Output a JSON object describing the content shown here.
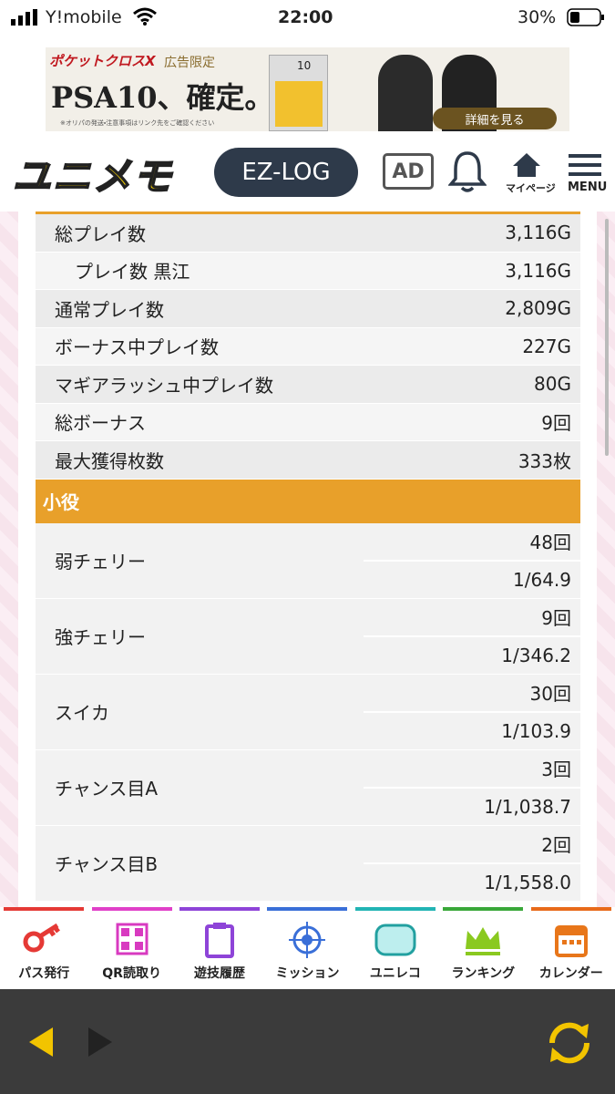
{
  "status": {
    "carrier": "Y!mobile",
    "time": "22:00",
    "battery": "30%"
  },
  "ad": {
    "brand": "ポケットクロスX",
    "tag": "広告限定",
    "headline": "PSA10、確定。",
    "grade": "10",
    "note": "※オリパの発送・注意事項はリンク先をご確認ください",
    "button": "詳細を見る"
  },
  "header": {
    "logo": "ユニメモ",
    "ezlog": "EZ-LOG",
    "ad": "AD",
    "mypage": "マイページ",
    "menu": "MENU"
  },
  "stats": [
    {
      "label": "総プレイ数",
      "value": "3,116G"
    },
    {
      "label": "プレイ数 黒江",
      "value": "3,116G"
    },
    {
      "label": "通常プレイ数",
      "value": "2,809G"
    },
    {
      "label": "ボーナス中プレイ数",
      "value": "227G"
    },
    {
      "label": "マギアラッシュ中プレイ数",
      "value": "80G"
    },
    {
      "label": "総ボーナス",
      "value": "9回"
    },
    {
      "label": "最大獲得枚数",
      "value": "333枚"
    }
  ],
  "section": {
    "title": "小役"
  },
  "koyaku": [
    {
      "name": "弱チェリー",
      "count": "48回",
      "rate": "1/64.9"
    },
    {
      "name": "強チェリー",
      "count": "9回",
      "rate": "1/346.2"
    },
    {
      "name": "スイカ",
      "count": "30回",
      "rate": "1/103.9"
    },
    {
      "name": "チャンス目A",
      "count": "3回",
      "rate": "1/1,038.7"
    },
    {
      "name": "チャンス目B",
      "count": "2回",
      "rate": "1/1,558.0"
    }
  ],
  "nav": [
    "パス発行",
    "QR読取り",
    "遊技履歴",
    "ミッション",
    "ユニレコ",
    "ランキング",
    "カレンダー"
  ]
}
